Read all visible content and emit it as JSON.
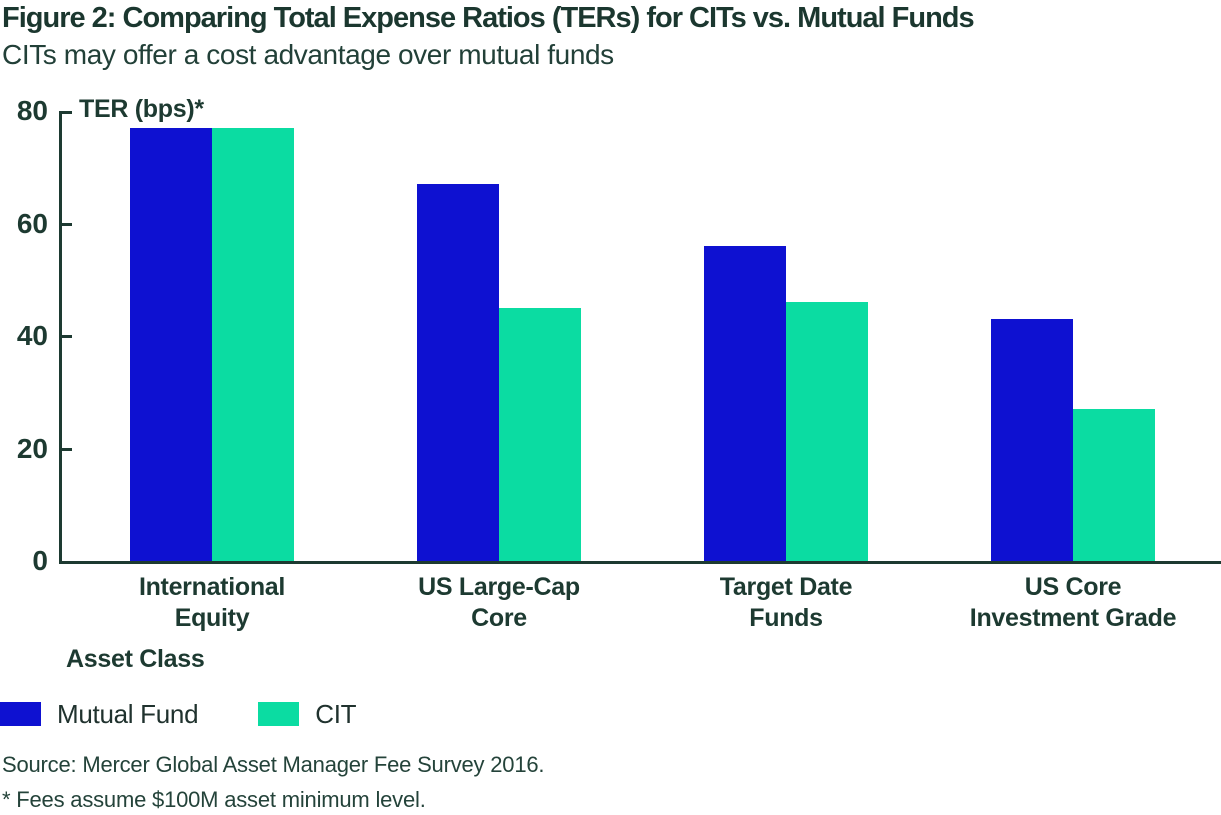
{
  "title": "Figure 2: Comparing Total Expense Ratios (TERs) for CITs vs. Mutual Funds",
  "subtitle": "CITs may offer a cost advantage over mutual funds",
  "chart_data": {
    "type": "bar",
    "categories": [
      "International\nEquity",
      "US Large-Cap\nCore",
      "Target Date\nFunds",
      "US Core\nInvestment Grade"
    ],
    "series": [
      {
        "name": "Mutual Fund",
        "color": "#0e11d1",
        "values": [
          77,
          67,
          56,
          43
        ]
      },
      {
        "name": "CIT",
        "color": "#0bdca2",
        "values": [
          77,
          45,
          46,
          27
        ]
      }
    ],
    "title": "Figure 2: Comparing Total Expense Ratios (TERs) for CITs vs. Mutual Funds",
    "ylabel": "TER (bps)*",
    "xlabel": "Asset Class",
    "ylim": [
      0,
      80
    ],
    "yticks": [
      0,
      20,
      40,
      60,
      80
    ],
    "grid": false,
    "legend_position": "bottom-left"
  },
  "axis": {
    "y_title": "TER (bps)*",
    "x_title": "Asset Class"
  },
  "footer": {
    "source": "Source: Mercer Global Asset Manager Fee Survey 2016.",
    "footnote": "* Fees assume $100M asset minimum level."
  },
  "colors": {
    "mutual_fund": "#0e11d1",
    "cit": "#0bdca2",
    "text_dark_green": "#1d3a31"
  }
}
